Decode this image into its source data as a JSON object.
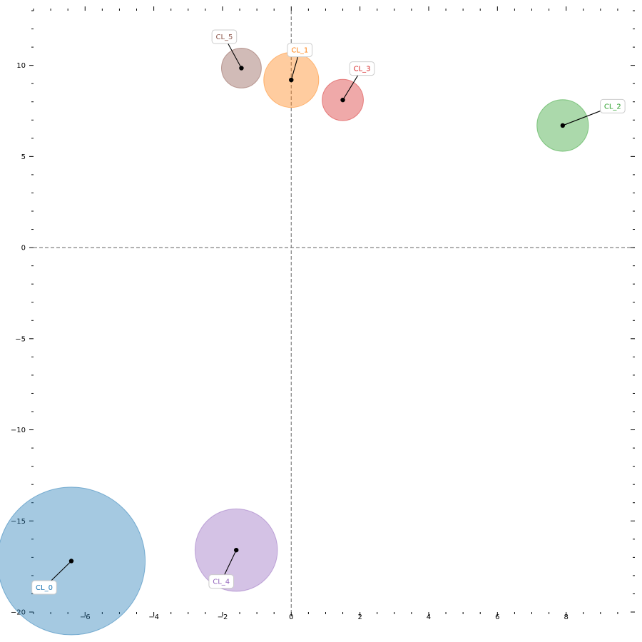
{
  "chart_data": {
    "type": "scatter",
    "title": "",
    "xlabel": "",
    "ylabel": "",
    "xlim": [
      -7.5,
      10.0
    ],
    "ylim": [
      -20.0,
      13.0
    ],
    "x_ticks": [
      -6,
      -4,
      -2,
      0,
      2,
      4,
      6,
      8
    ],
    "y_ticks": [
      -20,
      -15,
      -10,
      -5,
      0,
      5,
      10
    ],
    "reference_lines": {
      "x": 0,
      "y": 0,
      "style": "dashed",
      "color": "#808080"
    },
    "grid": false,
    "series": [
      {
        "name": "CL_0",
        "x": -6.4,
        "y": -17.2,
        "size": 2.15,
        "color": "#1f77b4"
      },
      {
        "name": "CL_1",
        "x": 0.0,
        "y": 9.2,
        "size": 0.8,
        "color": "#ff7f0e"
      },
      {
        "name": "CL_2",
        "x": 7.9,
        "y": 6.7,
        "size": 0.75,
        "color": "#2ca02c"
      },
      {
        "name": "CL_3",
        "x": 1.5,
        "y": 8.1,
        "size": 0.6,
        "color": "#d62728"
      },
      {
        "name": "CL_4",
        "x": -1.6,
        "y": -16.6,
        "size": 1.2,
        "color": "#9467bd"
      },
      {
        "name": "CL_5",
        "x": -1.45,
        "y": 9.85,
        "size": 0.58,
        "color": "#8c564b"
      }
    ]
  }
}
